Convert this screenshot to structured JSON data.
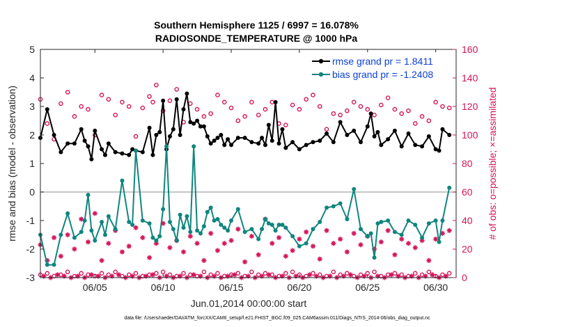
{
  "chart_data": {
    "type": "line",
    "title": "Southern Hemisphere 1125 / 6997 = 16.078%",
    "subtitle": "RADIOSONDE_TEMPERATURE @ 1000 hPa",
    "xlabel": "Jun.01,2014 00:00:00 start",
    "ylabel_left": "rmse and bias (model - observation)",
    "ylabel_right": "# of obs: o=possible; ×=assimilated",
    "footnote": "data file: /Users/raeder/DAI/ATM_forcXX/CAM6_setup/f.e21.FHIST_BGC.f09_025.CAM6assim.011/Diags_NTrS_2014-06/obs_diag_output.nc",
    "xlim": [
      1,
      31.5
    ],
    "ylim_left": [
      -3,
      5
    ],
    "ylim_right": [
      0,
      160
    ],
    "x_tick_values": [
      5,
      10,
      15,
      20,
      25,
      30
    ],
    "x_tick_labels": [
      "06/05",
      "06/10",
      "06/15",
      "06/20",
      "06/25",
      "06/30"
    ],
    "y_left_ticks": [
      "-3",
      "-2",
      "-1",
      "0",
      "1",
      "2",
      "3",
      "4",
      "5"
    ],
    "y_right_ticks": [
      "0",
      "20",
      "40",
      "60",
      "80",
      "100",
      "120",
      "140",
      "160"
    ],
    "grid": false,
    "zero_line": 0,
    "legend_position": "top-right",
    "colors": {
      "rmse": "#000000",
      "bias": "#10857f",
      "obs": "#d4145a",
      "zero": "#b4b4b4",
      "legend_text": "#0a3fd8"
    },
    "series": [
      {
        "name": "rmse grand pr = 1.8411",
        "axis": "left",
        "x": [
          1.0,
          1.5,
          2.0,
          2.5,
          3.0,
          3.5,
          4.0,
          4.25,
          4.5,
          4.75,
          5.0,
          5.5,
          5.75,
          6.0,
          6.5,
          7.0,
          7.5,
          7.75,
          8.0,
          8.5,
          9.0,
          9.25,
          9.5,
          9.75,
          10.0,
          10.25,
          10.5,
          10.75,
          11.0,
          11.25,
          11.5,
          11.75,
          12.0,
          12.25,
          12.5,
          12.75,
          13.0,
          13.25,
          13.5,
          13.75,
          14.0,
          14.25,
          14.5,
          14.75,
          15.0,
          15.5,
          16.0,
          16.5,
          17.0,
          17.25,
          17.5,
          17.75,
          18.0,
          18.25,
          18.5,
          18.75,
          19.0,
          19.5,
          20.0,
          20.5,
          21.0,
          21.5,
          22.0,
          22.5,
          23.0,
          23.5,
          24.0,
          24.5,
          25.0,
          25.25,
          25.5,
          25.75,
          26.0,
          26.5,
          27.0,
          27.5,
          28.0,
          28.5,
          29.0,
          29.5,
          30.0,
          30.25,
          30.5,
          31.0
        ],
        "values": [
          1.9,
          2.9,
          2.0,
          1.4,
          1.7,
          1.7,
          2.2,
          1.8,
          1.6,
          1.15,
          2.15,
          1.5,
          1.3,
          1.7,
          1.4,
          1.35,
          1.3,
          1.5,
          1.45,
          1.4,
          2.25,
          1.3,
          2.0,
          2.1,
          3.2,
          1.5,
          1.95,
          2.2,
          3.25,
          2.0,
          2.9,
          3.45,
          2.45,
          2.4,
          2.5,
          2.3,
          2.3,
          1.95,
          1.7,
          1.8,
          1.9,
          2.0,
          1.65,
          1.85,
          1.65,
          1.9,
          1.9,
          1.75,
          1.7,
          1.9,
          1.65,
          2.35,
          1.8,
          3.15,
          1.7,
          2.2,
          1.55,
          1.75,
          1.5,
          1.65,
          1.75,
          1.8,
          2.05,
          1.75,
          2.45,
          2.0,
          2.15,
          1.75,
          2.3,
          2.75,
          1.95,
          2.1,
          1.65,
          1.85,
          2.15,
          1.6,
          2.05,
          1.65,
          1.6,
          1.95,
          1.5,
          1.45,
          2.2,
          2.0
        ]
      },
      {
        "name": "bias grand pr = -1.2408",
        "axis": "left",
        "x": [
          1.0,
          1.5,
          2.0,
          2.5,
          3.0,
          3.5,
          4.0,
          4.25,
          4.5,
          4.75,
          5.0,
          5.5,
          5.75,
          6.0,
          6.5,
          7.0,
          7.5,
          7.75,
          8.0,
          8.5,
          9.0,
          9.25,
          9.5,
          9.75,
          10.0,
          10.25,
          10.5,
          10.75,
          11.0,
          11.25,
          11.5,
          11.75,
          12.0,
          12.25,
          12.5,
          12.75,
          13.0,
          13.25,
          13.5,
          13.75,
          14.0,
          14.25,
          14.5,
          14.75,
          15.0,
          15.5,
          16.0,
          16.5,
          17.0,
          17.25,
          17.5,
          17.75,
          18.0,
          18.25,
          18.5,
          18.75,
          19.0,
          19.5,
          20.0,
          20.5,
          21.0,
          21.5,
          22.0,
          22.5,
          23.0,
          23.5,
          24.0,
          24.5,
          25.0,
          25.25,
          25.5,
          25.75,
          26.0,
          26.5,
          27.0,
          27.5,
          28.0,
          28.5,
          29.0,
          29.5,
          30.0,
          30.25,
          30.5,
          31.0
        ],
        "values": [
          -1.5,
          -2.55,
          -2.55,
          -1.5,
          -0.75,
          -1.6,
          -1.4,
          -1.0,
          -0.1,
          -1.35,
          -1.7,
          -1.05,
          -1.5,
          -0.85,
          -1.3,
          0.4,
          -1.05,
          -1.15,
          1.45,
          -1.0,
          -1.1,
          -1.6,
          -1.7,
          -1.55,
          -0.6,
          1.6,
          -1.05,
          -1.3,
          -1.7,
          -0.8,
          -1.25,
          -0.85,
          -1.4,
          1.6,
          -1.35,
          -1.45,
          -1.2,
          -0.7,
          -0.55,
          -1.0,
          -0.95,
          -1.15,
          -1.25,
          -1.35,
          -1.0,
          -0.6,
          -1.4,
          -1.3,
          -1.65,
          -1.3,
          -0.95,
          -1.1,
          -1.15,
          -1.35,
          -1.15,
          -1.15,
          -1.25,
          -1.55,
          -1.9,
          -1.8,
          -1.3,
          -1.05,
          -0.55,
          -0.5,
          -0.4,
          -0.95,
          0.1,
          -1.3,
          -1.55,
          -1.45,
          -2.3,
          -1.1,
          -1.05,
          -1.0,
          -1.4,
          -1.5,
          -1.0,
          -1.15,
          -1.6,
          -1.1,
          -1.0,
          -1.75,
          -1.0,
          0.15
        ]
      },
      {
        "name": "possible",
        "axis": "right",
        "marker": "o",
        "x": [
          1.0,
          1.5,
          2.0,
          2.5,
          3.0,
          3.5,
          4.0,
          4.5,
          5.0,
          5.5,
          6.0,
          6.5,
          7.0,
          7.5,
          8.0,
          8.5,
          9.0,
          9.25,
          9.5,
          10.0,
          10.5,
          11.0,
          11.5,
          12.0,
          12.5,
          13.0,
          13.5,
          14.0,
          14.5,
          15.0,
          15.5,
          16.0,
          16.5,
          17.0,
          17.5,
          18.0,
          18.5,
          19.0,
          19.5,
          20.0,
          20.5,
          21.0,
          21.5,
          22.0,
          22.5,
          23.0,
          23.5,
          24.0,
          24.5,
          25.0,
          25.5,
          26.0,
          26.5,
          27.0,
          27.5,
          28.0,
          28.5,
          29.0,
          29.5,
          30.0,
          30.5,
          31.0
        ],
        "values": [
          125,
          108,
          97,
          122,
          130,
          113,
          120,
          118,
          100,
          128,
          125,
          114,
          123,
          120,
          99,
          119,
          127,
          123,
          135,
          117,
          124,
          132,
          109,
          122,
          118,
          113,
          115,
          128,
          123,
          119,
          110,
          113,
          123,
          114,
          118,
          123,
          108,
          107,
          121,
          118,
          125,
          128,
          120,
          104,
          115,
          114,
          117,
          123,
          120,
          118,
          114,
          121,
          126,
          118,
          115,
          117,
          108,
          113,
          110,
          123,
          120,
          119
        ]
      },
      {
        "name": "assimilated",
        "axis": "right",
        "marker": "*",
        "x": [
          1.0,
          1.5,
          2.0,
          2.5,
          3.0,
          3.5,
          4.0,
          4.5,
          5.0,
          5.5,
          6.0,
          6.5,
          7.0,
          7.5,
          8.0,
          8.5,
          9.0,
          9.5,
          10.0,
          10.5,
          11.0,
          11.5,
          12.0,
          12.5,
          13.0,
          13.5,
          14.0,
          14.5,
          15.0,
          15.5,
          16.0,
          16.5,
          17.0,
          17.5,
          18.0,
          18.5,
          19.0,
          19.5,
          20.0,
          20.5,
          21.0,
          21.5,
          22.0,
          22.5,
          23.0,
          23.5,
          24.0,
          24.5,
          25.0,
          25.5,
          26.0,
          26.5,
          27.0,
          27.5,
          28.0,
          28.5,
          29.0,
          29.5,
          30.0,
          30.5,
          31.0
        ],
        "values": [
          23,
          12,
          28,
          15,
          30,
          20,
          41,
          25,
          45,
          12,
          24,
          33,
          18,
          22,
          35,
          28,
          14,
          24,
          38,
          21,
          26,
          18,
          29,
          24,
          12,
          31,
          19,
          24,
          26,
          34,
          11,
          29,
          16,
          41,
          24,
          28,
          15,
          19,
          27,
          32,
          22,
          13,
          33,
          24,
          27,
          18,
          31,
          23,
          29,
          20,
          25,
          33,
          16,
          27,
          24,
          21,
          26,
          12,
          27,
          31,
          33
        ]
      },
      {
        "name": "possible (bias)",
        "axis": "right",
        "marker": "o",
        "x": [
          1.0,
          1.5,
          2.0,
          2.5,
          3.0,
          3.5,
          4.0,
          4.5,
          5.0,
          5.5,
          6.0,
          6.5,
          7.0,
          7.5,
          8.0,
          8.5,
          9.0,
          9.5,
          10.0,
          10.5,
          11.0,
          11.5,
          12.0,
          12.5,
          13.0,
          13.5,
          14.0,
          14.5,
          15.0,
          15.5,
          16.0,
          16.5,
          17.0,
          17.5,
          18.0,
          18.5,
          19.0,
          19.5,
          20.0,
          20.5,
          21.0,
          21.5,
          22.0,
          22.5,
          23.0,
          23.5,
          24.0,
          24.5,
          25.0,
          25.5,
          26.0,
          26.5,
          27.0,
          27.5,
          28.0,
          28.5,
          29.0,
          29.5,
          30.0,
          30.5,
          31.0
        ],
        "values": [
          2,
          3,
          1,
          2,
          4,
          1,
          3,
          2,
          1,
          3,
          2,
          4,
          1,
          2,
          3,
          1,
          2,
          3,
          4,
          2,
          1,
          3,
          2,
          1,
          4,
          2,
          3,
          1,
          2,
          3,
          1,
          4,
          2,
          3,
          2,
          1,
          3,
          4,
          2,
          1,
          3,
          2,
          1,
          4,
          2,
          3,
          1,
          2,
          3,
          4,
          1,
          2,
          3,
          2,
          1,
          3,
          2,
          4,
          1,
          2,
          3
        ]
      },
      {
        "name": "assimilated (bias)",
        "axis": "right",
        "marker": "*",
        "x": [
          1.25,
          1.75,
          2.25,
          2.75,
          3.25,
          3.75,
          4.25,
          4.75,
          5.25,
          5.75,
          6.25,
          6.75,
          7.25,
          7.75,
          8.25,
          8.75,
          9.25,
          9.75,
          10.25,
          10.75,
          11.25,
          11.75,
          12.25,
          12.75,
          13.25,
          13.75,
          14.25,
          14.75,
          15.25,
          15.75,
          16.25,
          16.75,
          17.25,
          17.75,
          18.25,
          18.75,
          19.25,
          19.75,
          20.25,
          20.75,
          21.25,
          21.75,
          22.25,
          22.75,
          23.25,
          23.75,
          24.25,
          24.75,
          25.25,
          25.75,
          26.25,
          26.75,
          27.25,
          27.75,
          28.25,
          28.75,
          29.25,
          29.75,
          30.25,
          30.75
        ],
        "values": [
          1,
          0,
          2,
          1,
          0,
          1,
          0,
          2,
          1,
          0,
          1,
          2,
          0,
          1,
          0,
          1,
          2,
          0,
          1,
          0,
          1,
          0,
          2,
          1,
          0,
          1,
          0,
          1,
          2,
          0,
          1,
          0,
          1,
          2,
          0,
          1,
          0,
          1,
          0,
          2,
          1,
          0,
          1,
          0,
          1,
          2,
          0,
          1,
          0,
          1,
          0,
          2,
          1,
          0,
          1,
          0,
          1,
          2,
          0,
          1
        ]
      }
    ]
  }
}
